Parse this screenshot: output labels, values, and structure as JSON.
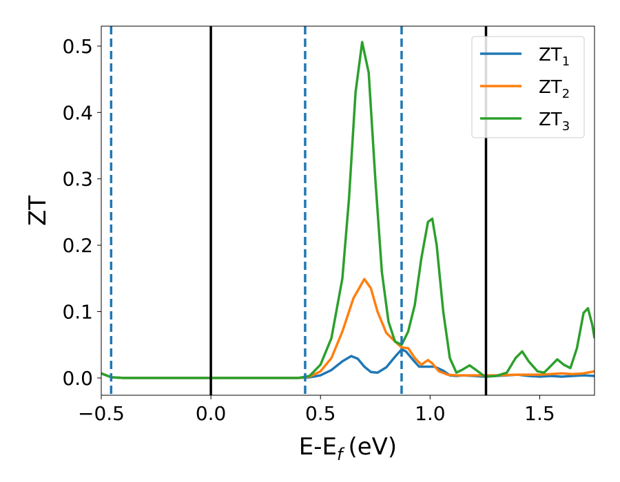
{
  "chart_data": {
    "type": "line",
    "xlabel": "E-E",
    "xlabel_sub": "f",
    "xlabel_unit": "(eV)",
    "ylabel": "ZT",
    "xlim": [
      -0.5,
      1.75
    ],
    "ylim": [
      -0.026,
      0.53
    ],
    "xticks": [
      -0.5,
      0.0,
      0.5,
      1.0,
      1.5
    ],
    "xtick_labels": [
      "−0.5",
      "0.0",
      "0.5",
      "1.0",
      "1.5"
    ],
    "yticks": [
      0.0,
      0.1,
      0.2,
      0.3,
      0.4,
      0.5
    ],
    "ytick_labels": [
      "0.0",
      "0.1",
      "0.2",
      "0.3",
      "0.4",
      "0.5"
    ],
    "grid": false,
    "legend_position": "top-right",
    "vlines": [
      {
        "x": -0.455,
        "style": "dashed",
        "color": "#1f77b4"
      },
      {
        "x": 0.0,
        "style": "solid",
        "color": "#000000"
      },
      {
        "x": 0.43,
        "style": "dashed",
        "color": "#1f77b4"
      },
      {
        "x": 0.87,
        "style": "dashed",
        "color": "#1f77b4"
      },
      {
        "x": 1.255,
        "style": "solid",
        "color": "#000000"
      }
    ],
    "series": [
      {
        "name": "ZT",
        "name_sub": "1",
        "color": "#1f77b4",
        "points": [
          [
            -0.5,
            0.007
          ],
          [
            -0.47,
            0.003
          ],
          [
            -0.45,
            0.001
          ],
          [
            -0.4,
            0.0
          ],
          [
            0.0,
            0.0
          ],
          [
            0.4,
            0.0
          ],
          [
            0.45,
            0.001
          ],
          [
            0.5,
            0.004
          ],
          [
            0.55,
            0.012
          ],
          [
            0.6,
            0.025
          ],
          [
            0.64,
            0.033
          ],
          [
            0.67,
            0.029
          ],
          [
            0.7,
            0.017
          ],
          [
            0.73,
            0.009
          ],
          [
            0.76,
            0.008
          ],
          [
            0.8,
            0.016
          ],
          [
            0.84,
            0.032
          ],
          [
            0.87,
            0.043
          ],
          [
            0.89,
            0.04
          ],
          [
            0.92,
            0.028
          ],
          [
            0.95,
            0.017
          ],
          [
            0.98,
            0.017
          ],
          [
            1.02,
            0.017
          ],
          [
            1.06,
            0.011
          ],
          [
            1.09,
            0.004
          ],
          [
            1.12,
            0.003
          ],
          [
            1.15,
            0.004
          ],
          [
            1.2,
            0.003
          ],
          [
            1.25,
            0.002
          ],
          [
            1.3,
            0.003
          ],
          [
            1.35,
            0.004
          ],
          [
            1.4,
            0.005
          ],
          [
            1.45,
            0.003
          ],
          [
            1.5,
            0.002
          ],
          [
            1.55,
            0.003
          ],
          [
            1.6,
            0.002
          ],
          [
            1.65,
            0.003
          ],
          [
            1.7,
            0.004
          ],
          [
            1.75,
            0.003
          ]
        ]
      },
      {
        "name": "ZT",
        "name_sub": "2",
        "color": "#ff7f0e",
        "points": [
          [
            -0.5,
            0.007
          ],
          [
            -0.47,
            0.003
          ],
          [
            -0.45,
            0.001
          ],
          [
            -0.4,
            0.0
          ],
          [
            0.0,
            0.0
          ],
          [
            0.4,
            0.0
          ],
          [
            0.45,
            0.002
          ],
          [
            0.5,
            0.01
          ],
          [
            0.55,
            0.03
          ],
          [
            0.6,
            0.07
          ],
          [
            0.65,
            0.12
          ],
          [
            0.7,
            0.149
          ],
          [
            0.73,
            0.135
          ],
          [
            0.76,
            0.1
          ],
          [
            0.8,
            0.068
          ],
          [
            0.84,
            0.055
          ],
          [
            0.87,
            0.046
          ],
          [
            0.9,
            0.045
          ],
          [
            0.93,
            0.03
          ],
          [
            0.96,
            0.02
          ],
          [
            0.99,
            0.027
          ],
          [
            1.01,
            0.022
          ],
          [
            1.04,
            0.01
          ],
          [
            1.08,
            0.005
          ],
          [
            1.12,
            0.004
          ],
          [
            1.2,
            0.004
          ],
          [
            1.3,
            0.004
          ],
          [
            1.4,
            0.005
          ],
          [
            1.5,
            0.005
          ],
          [
            1.55,
            0.006
          ],
          [
            1.6,
            0.007
          ],
          [
            1.65,
            0.006
          ],
          [
            1.7,
            0.007
          ],
          [
            1.75,
            0.01
          ]
        ]
      },
      {
        "name": "ZT",
        "name_sub": "3",
        "color": "#2ca02c",
        "points": [
          [
            -0.5,
            0.007
          ],
          [
            -0.47,
            0.003
          ],
          [
            -0.45,
            0.001
          ],
          [
            -0.4,
            0.0
          ],
          [
            0.0,
            0.0
          ],
          [
            0.4,
            0.0
          ],
          [
            0.45,
            0.003
          ],
          [
            0.5,
            0.02
          ],
          [
            0.55,
            0.06
          ],
          [
            0.6,
            0.15
          ],
          [
            0.63,
            0.27
          ],
          [
            0.66,
            0.43
          ],
          [
            0.69,
            0.506
          ],
          [
            0.72,
            0.46
          ],
          [
            0.75,
            0.3
          ],
          [
            0.78,
            0.16
          ],
          [
            0.81,
            0.085
          ],
          [
            0.84,
            0.055
          ],
          [
            0.87,
            0.05
          ],
          [
            0.9,
            0.07
          ],
          [
            0.93,
            0.11
          ],
          [
            0.96,
            0.18
          ],
          [
            0.99,
            0.235
          ],
          [
            1.01,
            0.24
          ],
          [
            1.03,
            0.2
          ],
          [
            1.06,
            0.1
          ],
          [
            1.09,
            0.03
          ],
          [
            1.12,
            0.008
          ],
          [
            1.15,
            0.013
          ],
          [
            1.18,
            0.019
          ],
          [
            1.21,
            0.012
          ],
          [
            1.25,
            0.002
          ],
          [
            1.3,
            0.003
          ],
          [
            1.35,
            0.008
          ],
          [
            1.39,
            0.03
          ],
          [
            1.42,
            0.04
          ],
          [
            1.45,
            0.025
          ],
          [
            1.49,
            0.01
          ],
          [
            1.52,
            0.008
          ],
          [
            1.55,
            0.018
          ],
          [
            1.58,
            0.028
          ],
          [
            1.61,
            0.02
          ],
          [
            1.64,
            0.015
          ],
          [
            1.67,
            0.045
          ],
          [
            1.7,
            0.098
          ],
          [
            1.72,
            0.105
          ],
          [
            1.74,
            0.08
          ],
          [
            1.75,
            0.06
          ]
        ]
      }
    ]
  }
}
